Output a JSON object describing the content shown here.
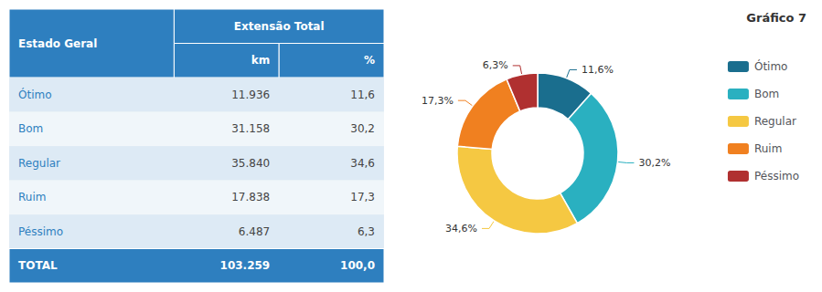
{
  "chart_data": {
    "type": "pie",
    "title": "Gráfico 7",
    "categories": [
      "Ótimo",
      "Bom",
      "Regular",
      "Ruim",
      "Péssimo"
    ],
    "values": [
      11.6,
      30.2,
      34.6,
      17.3,
      6.3
    ],
    "value_labels": [
      "11,6%",
      "30,2%",
      "34,6%",
      "17,3%",
      "6,3%"
    ],
    "colors": [
      "#1a6e8e",
      "#2ab0c0",
      "#f5c842",
      "#f08020",
      "#b03030"
    ],
    "data_labels": true,
    "legend": "right",
    "table": {
      "color": "#2e7fbf",
      "columns": [
        "Estado Geral",
        "Extensão Total"
      ],
      "subcolumns": [
        "km",
        "%"
      ],
      "rows": [
        [
          "Ótimo",
          "11.936",
          "11,6"
        ],
        [
          "Bom",
          "31.158",
          "30,2"
        ],
        [
          "Regular",
          "35.840",
          "34,6"
        ],
        [
          "Ruim",
          "17.838",
          "17,3"
        ],
        [
          "Péssimo",
          "6.487",
          "6,3"
        ]
      ],
      "total": [
        "TOTAL",
        "103.259",
        "100,0"
      ]
    }
  }
}
